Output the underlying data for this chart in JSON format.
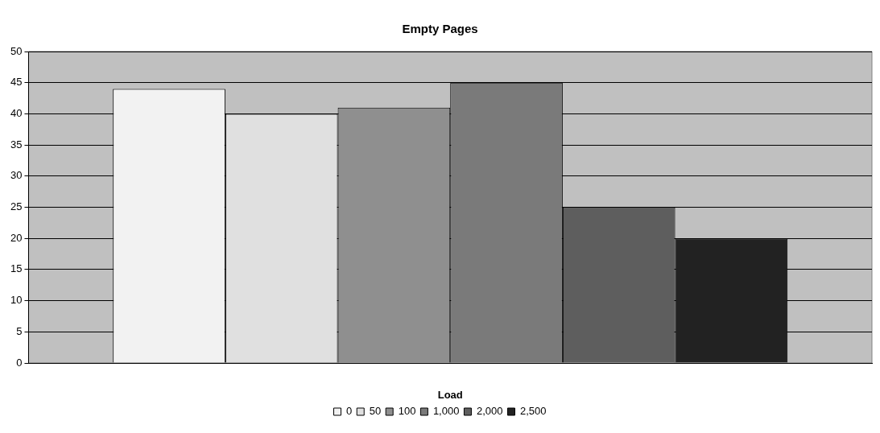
{
  "chart_data": {
    "type": "bar",
    "title": "Empty Pages",
    "xlabel": "Load",
    "categories": [
      null
    ],
    "series": [
      {
        "name": "0",
        "color": "#f2f2f2",
        "values": [
          44
        ]
      },
      {
        "name": "50",
        "color": "#e0e0e0",
        "values": [
          40
        ]
      },
      {
        "name": "100",
        "color": "#8f8f8f",
        "values": [
          41
        ]
      },
      {
        "name": "1,000",
        "color": "#7a7a7a",
        "values": [
          45
        ]
      },
      {
        "name": "2,000",
        "color": "#5e5e5e",
        "values": [
          25
        ]
      },
      {
        "name": "2,500",
        "color": "#222222",
        "values": [
          20
        ]
      }
    ],
    "ylim": [
      0,
      50
    ],
    "yticks": [
      0,
      5,
      10,
      15,
      20,
      25,
      30,
      35,
      40,
      45,
      50
    ],
    "grid": "y",
    "legend": "bottom"
  }
}
